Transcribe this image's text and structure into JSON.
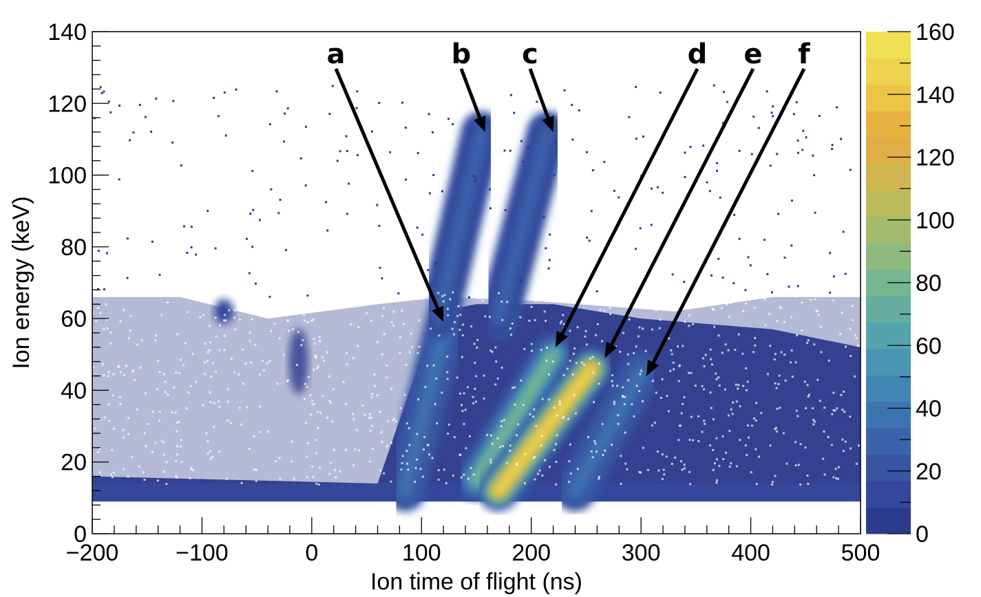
{
  "chart_data": {
    "type": "heatmap",
    "xlabel": "Ion time of flight (ns)",
    "ylabel": "Ion energy (keV)",
    "xlim": [
      -200,
      500
    ],
    "ylim": [
      0,
      140
    ],
    "x_ticks": [
      "−200",
      "−100",
      "0",
      "100",
      "200",
      "300",
      "400",
      "500"
    ],
    "x_tick_values": [
      -200,
      -100,
      0,
      100,
      200,
      300,
      400,
      500
    ],
    "y_ticks": [
      "0",
      "20",
      "40",
      "60",
      "80",
      "100",
      "120",
      "140"
    ],
    "y_tick_values": [
      0,
      20,
      40,
      60,
      80,
      100,
      120,
      140
    ],
    "colorbar": {
      "range": [
        0,
        160
      ],
      "ticks": [
        "0",
        "20",
        "40",
        "60",
        "80",
        "100",
        "120",
        "140",
        "160"
      ],
      "tick_values": [
        0,
        20,
        40,
        60,
        80,
        100,
        120,
        140,
        160
      ],
      "colors": [
        "#2c3a8c",
        "#33479b",
        "#3755a3",
        "#3a64aa",
        "#3d74b0",
        "#4185b3",
        "#4a95b3",
        "#55a3ad",
        "#64ada0",
        "#77b58e",
        "#8db97d",
        "#a4bb6c",
        "#bbbb5c",
        "#cfb650",
        "#dfae45",
        "#e8b240",
        "#ecc446",
        "#eed44e",
        "#f0e054"
      ]
    },
    "bands": [
      {
        "name": "a",
        "x_start": 85,
        "y_start": 12,
        "x_end": 125,
        "y_end": 62,
        "peak": 40
      },
      {
        "name": "b",
        "x_start": 115,
        "y_start": 60,
        "x_end": 155,
        "y_end": 112,
        "peak": 30
      },
      {
        "name": "c",
        "x_start": 170,
        "y_start": 60,
        "x_end": 215,
        "y_end": 112,
        "peak": 30
      },
      {
        "name": "d",
        "x_start": 150,
        "y_start": 15,
        "x_end": 220,
        "y_end": 50,
        "peak": 80
      },
      {
        "name": "e",
        "x_start": 170,
        "y_start": 12,
        "x_end": 255,
        "y_end": 46,
        "peak": 150
      },
      {
        "name": "f",
        "x_start": 240,
        "y_start": 12,
        "x_end": 300,
        "y_end": 45,
        "peak": 40
      }
    ],
    "annotations": [
      {
        "label": "a",
        "tip_x": 120,
        "tip_y": 59
      },
      {
        "label": "b",
        "tip_x": 158,
        "tip_y": 112
      },
      {
        "label": "c",
        "tip_x": 220,
        "tip_y": 112
      },
      {
        "label": "d",
        "tip_x": 222,
        "tip_y": 52
      },
      {
        "label": "e",
        "tip_x": 267,
        "tip_y": 49
      },
      {
        "label": "f",
        "tip_x": 305,
        "tip_y": 44
      }
    ]
  }
}
